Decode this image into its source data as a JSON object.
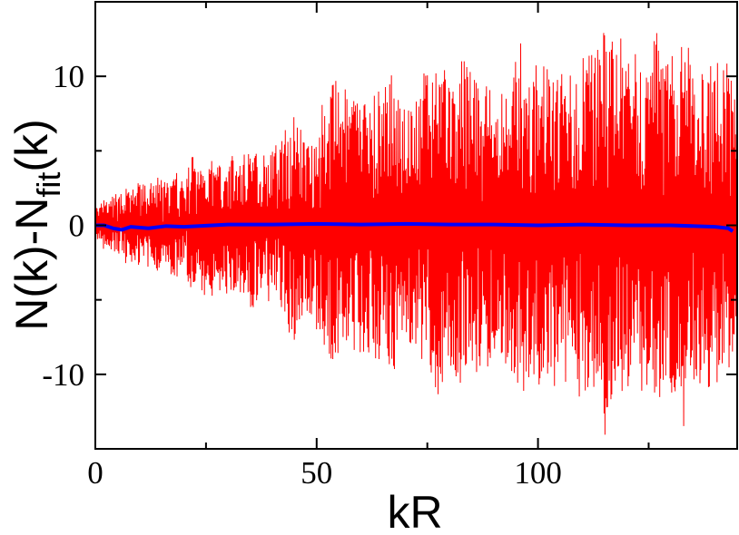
{
  "chart_data": {
    "type": "line",
    "title": "",
    "xlabel": "kR",
    "ylabel": {
      "before_sub": "N(k)-N",
      "sub": "fit",
      "after_sub": "(k)"
    },
    "xlim": [
      0,
      145
    ],
    "ylim": [
      -15,
      15
    ],
    "x_ticks": [
      {
        "value": 0,
        "label": "0"
      },
      {
        "value": 50,
        "label": "50"
      },
      {
        "value": 100,
        "label": "100"
      }
    ],
    "x_minor_ticks": [
      25,
      75,
      125
    ],
    "y_ticks": [
      {
        "value": -10,
        "label": "-10"
      },
      {
        "value": 0,
        "label": "0"
      },
      {
        "value": 10,
        "label": "10"
      }
    ],
    "y_minor_ticks": [
      -5,
      5
    ],
    "grid": false,
    "legend": "none",
    "series": [
      {
        "color": "#ff0000",
        "style": "thin oscillating line",
        "x_range": [
          0,
          145
        ],
        "points_x": [
          0,
          1,
          2,
          3,
          4,
          5,
          6,
          8,
          10,
          12,
          14,
          16,
          18,
          20,
          22,
          23,
          25,
          27,
          30,
          33,
          35,
          37,
          40,
          43,
          45,
          47,
          50,
          53,
          56,
          57,
          60,
          62,
          65,
          67,
          70,
          72,
          74,
          76,
          78,
          80,
          83,
          85,
          88,
          90,
          93,
          95,
          96,
          98,
          100,
          103,
          105,
          108,
          110,
          113,
          115,
          117,
          120,
          121,
          122,
          123,
          125,
          127,
          128,
          130,
          132,
          133,
          135,
          137,
          138,
          140,
          142,
          143,
          144,
          145
        ],
        "points_y": [
          -1.5,
          1.0,
          -1.8,
          1.5,
          -2.0,
          2.0,
          -2.5,
          2.3,
          -3.0,
          2.5,
          -3.2,
          2.8,
          -3.5,
          3.0,
          -5.0,
          3.5,
          -5.5,
          4.0,
          -4.8,
          4.5,
          -6.0,
          5.0,
          -5.0,
          6.5,
          -8.0,
          6.0,
          -7.0,
          9.5,
          -10.0,
          8.5,
          -9.0,
          9.0,
          -9.5,
          10.0,
          -9.0,
          8.0,
          -10.0,
          11.0,
          -12.5,
          9.5,
          -11.0,
          10.5,
          -10.5,
          8.5,
          -10.0,
          11.0,
          -12.5,
          10.0,
          -11.5,
          10.5,
          -11.0,
          10.0,
          -12.0,
          11.5,
          -14.0,
          12.0,
          -13.0,
          12.5,
          13.5,
          -11.0,
          11.0,
          -13.5,
          10.5,
          -12.0,
          11.0,
          -14.3,
          10.0,
          -12.5,
          11.0,
          -11.0,
          10.5,
          -12.0,
          9.0,
          -10.0
        ]
      },
      {
        "color": "#0000ff",
        "style": "thick smooth line",
        "points_x": [
          0,
          2,
          4,
          6,
          8,
          12,
          16,
          20,
          30,
          40,
          50,
          60,
          70,
          80,
          90,
          100,
          110,
          120,
          130,
          140,
          143,
          144
        ],
        "points_y": [
          0.0,
          0.0,
          -0.2,
          -0.3,
          -0.1,
          -0.2,
          -0.05,
          -0.1,
          0.05,
          0.05,
          0.1,
          0.05,
          0.1,
          0.05,
          0.05,
          0.0,
          0.05,
          0.0,
          0.0,
          -0.1,
          -0.2,
          -0.4
        ]
      }
    ]
  }
}
